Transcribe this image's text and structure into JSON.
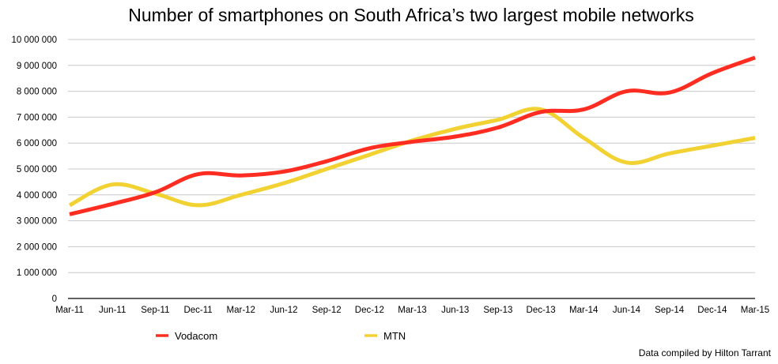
{
  "chart_data": {
    "type": "line",
    "title": "Number of smartphones on South Africa’s two largest mobile networks",
    "xlabel": "",
    "ylabel": "",
    "categories": [
      "Mar-11",
      "Jun-11",
      "Sep-11",
      "Dec-11",
      "Mar-12",
      "Jun-12",
      "Sep-12",
      "Dec-12",
      "Mar-13",
      "Jun-13",
      "Sep-13",
      "Dec-13",
      "Mar-14",
      "Jun-14",
      "Sep-14",
      "Dec-14",
      "Mar-15"
    ],
    "ylim": [
      0,
      10000000
    ],
    "y_ticks": [
      0,
      1000000,
      2000000,
      3000000,
      4000000,
      5000000,
      6000000,
      7000000,
      8000000,
      9000000,
      10000000
    ],
    "y_tick_labels": [
      "0",
      "1 000 000",
      "2 000 000",
      "3 000 000",
      "4 000 000",
      "5 000 000",
      "6 000 000",
      "7 000 000",
      "8 000 000",
      "9 000 000",
      "10 000 000"
    ],
    "grid": true,
    "legend_position": "bottom-left",
    "series": [
      {
        "name": "Vodacom",
        "color": "#ff2d21",
        "values": [
          3250000,
          3650000,
          4100000,
          4800000,
          4750000,
          4900000,
          5300000,
          5800000,
          6050000,
          6250000,
          6600000,
          7200000,
          7300000,
          8000000,
          7950000,
          8700000,
          9300000
        ]
      },
      {
        "name": "MTN",
        "color": "#f2d232",
        "values": [
          3600000,
          4400000,
          4050000,
          3600000,
          4000000,
          4450000,
          5000000,
          5550000,
          6100000,
          6550000,
          6900000,
          7300000,
          6200000,
          5250000,
          5600000,
          5900000,
          6200000
        ]
      }
    ],
    "annotations": [
      "Data compiled by Hilton Tarrant"
    ]
  }
}
